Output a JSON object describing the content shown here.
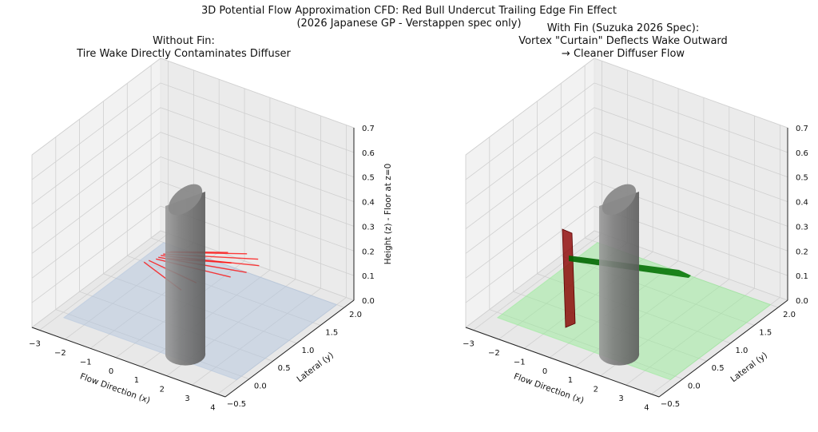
{
  "figure": {
    "title_line1": "3D Potential Flow Approximation CFD: Red Bull Undercut Trailing Edge Fin Effect",
    "title_line2": "(2026 Japanese GP - Verstappen spec only)"
  },
  "chart_data": [
    {
      "type": "3d-surface",
      "title_line1": "Without Fin:",
      "title_line2": "Tire Wake Directly Contaminates Diffuser",
      "xlabel": "Flow Direction (x)",
      "ylabel": "Lateral (y)",
      "zlabel": "Height (z) - Floor at z=0",
      "x_ticks": [
        "−3",
        "−2",
        "−1",
        "0",
        "1",
        "2",
        "3",
        "4"
      ],
      "y_ticks": [
        "−0.5",
        "0.0",
        "0.5",
        "1.0",
        "1.5",
        "2.0"
      ],
      "z_ticks": [
        "0.0",
        "0.1",
        "0.2",
        "0.3",
        "0.4",
        "0.5",
        "0.6",
        "0.7"
      ],
      "xlim": [
        -3.3,
        4.3
      ],
      "ylim": [
        -0.5,
        2.2
      ],
      "zlim": [
        0,
        0.7
      ],
      "floor_color": "#b0c4de",
      "tire_color": "#808080",
      "wake_color": "#ff0000",
      "has_fin": false
    },
    {
      "type": "3d-surface",
      "title_line1": "With Fin (Suzuka 2026 Spec):",
      "title_line2": "Vortex \"Curtain\" Deflects Wake Outward",
      "title_line3": "→ Cleaner Diffuser Flow",
      "xlabel": "Flow Direction (x)",
      "ylabel": "Lateral (y)",
      "zlabel": "Height (z) - Floor at z=0",
      "x_ticks": [
        "−3",
        "−2",
        "−1",
        "0",
        "1",
        "2",
        "3",
        "4"
      ],
      "y_ticks": [
        "−0.5",
        "0.0",
        "0.5",
        "1.0",
        "1.5",
        "2.0"
      ],
      "z_ticks": [
        "0.0",
        "0.1",
        "0.2",
        "0.3",
        "0.4",
        "0.5",
        "0.6",
        "0.7"
      ],
      "xlim": [
        -3.3,
        4.3
      ],
      "ylim": [
        -0.5,
        2.2
      ],
      "zlim": [
        0,
        0.7
      ],
      "floor_color": "#90ee90",
      "tire_color": "#808080",
      "fin_color": "#8b0000",
      "vortex_color": "#006400",
      "has_fin": true
    }
  ]
}
